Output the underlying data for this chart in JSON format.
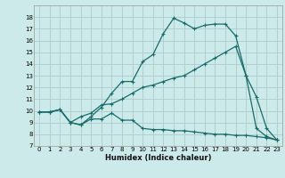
{
  "title": "",
  "xlabel": "Humidex (Indice chaleur)",
  "bg_color": "#cceae9",
  "grid_color": "#afd0cf",
  "line_color": "#1a6b6b",
  "line1_x": [
    0,
    1,
    2,
    3,
    4,
    5,
    6,
    7,
    8,
    9,
    10,
    11,
    12,
    13,
    14,
    15,
    16,
    17,
    18,
    19,
    20,
    21,
    22,
    23
  ],
  "line1_y": [
    9.9,
    9.9,
    10.1,
    9.0,
    8.8,
    9.5,
    10.3,
    11.5,
    12.5,
    12.5,
    14.2,
    14.8,
    16.6,
    17.9,
    17.5,
    17.0,
    17.3,
    17.4,
    17.4,
    16.4,
    13.0,
    11.2,
    8.5,
    7.5
  ],
  "line2_x": [
    0,
    1,
    2,
    3,
    4,
    5,
    6,
    7,
    8,
    9,
    10,
    11,
    12,
    13,
    14,
    15,
    16,
    17,
    18,
    19,
    20,
    21,
    22,
    23
  ],
  "line2_y": [
    9.9,
    9.9,
    10.1,
    9.0,
    9.5,
    9.8,
    10.5,
    10.6,
    11.0,
    11.5,
    12.0,
    12.2,
    12.5,
    12.8,
    13.0,
    13.5,
    14.0,
    14.5,
    15.0,
    15.5,
    13.0,
    8.5,
    7.8,
    7.5
  ],
  "line3_x": [
    0,
    1,
    2,
    3,
    4,
    5,
    6,
    7,
    8,
    9,
    10,
    11,
    12,
    13,
    14,
    15,
    16,
    17,
    18,
    19,
    20,
    21,
    22,
    23
  ],
  "line3_y": [
    9.9,
    9.9,
    10.1,
    9.0,
    8.8,
    9.3,
    9.3,
    9.8,
    9.2,
    9.2,
    8.5,
    8.4,
    8.4,
    8.3,
    8.3,
    8.2,
    8.1,
    8.0,
    8.0,
    7.9,
    7.9,
    7.8,
    7.7,
    7.5
  ],
  "ylim": [
    7,
    19
  ],
  "xlim": [
    -0.5,
    23.5
  ],
  "yticks": [
    7,
    8,
    9,
    10,
    11,
    12,
    13,
    14,
    15,
    16,
    17,
    18
  ],
  "xticks": [
    0,
    1,
    2,
    3,
    4,
    5,
    6,
    7,
    8,
    9,
    10,
    11,
    12,
    13,
    14,
    15,
    16,
    17,
    18,
    19,
    20,
    21,
    22,
    23
  ],
  "ylabel_fontsize": 5,
  "xlabel_fontsize": 6,
  "tick_fontsize": 5
}
